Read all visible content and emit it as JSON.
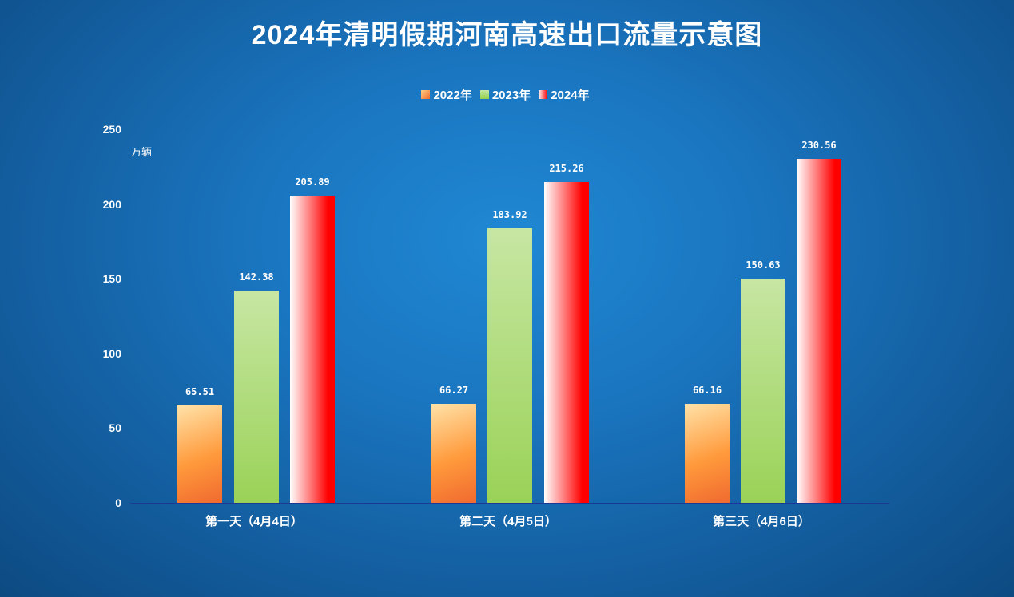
{
  "title": "2024年清明假期河南高速出口流量示意图",
  "legend": [
    "2022年",
    "2023年",
    "2024年"
  ],
  "unit_label": "万辆",
  "y_ticks": [
    "250",
    "200",
    "150",
    "100",
    "50",
    "0"
  ],
  "x_labels": [
    "第一天（4月4日）",
    "第二天（4月5日）",
    "第三天（4月6日）"
  ],
  "value_labels": {
    "g0": [
      "65.51",
      "142.38",
      "205.89"
    ],
    "g1": [
      "66.27",
      "183.92",
      "215.26"
    ],
    "g2": [
      "66.16",
      "150.63",
      "230.56"
    ]
  },
  "colors": {
    "background": "#1a75bf",
    "series_2022": "#f26a2a",
    "series_2023": "#9ad257",
    "series_2024": "#ff0000",
    "axis_line": "#1a3a9a"
  },
  "chart_data": {
    "type": "bar",
    "title": "2024年清明假期河南高速出口流量示意图",
    "xlabel": "",
    "ylabel": "万辆",
    "ylim": [
      0,
      250
    ],
    "y_ticks": [
      0,
      50,
      100,
      150,
      200,
      250
    ],
    "grid": false,
    "legend_position": "top",
    "categories": [
      "第一天（4月4日）",
      "第二天（4月5日）",
      "第三天（4月6日）"
    ],
    "series": [
      {
        "name": "2022年",
        "values": [
          65.51,
          66.27,
          66.16
        ]
      },
      {
        "name": "2023年",
        "values": [
          142.38,
          183.92,
          150.63
        ]
      },
      {
        "name": "2024年",
        "values": [
          205.89,
          215.26,
          230.56
        ]
      }
    ]
  }
}
